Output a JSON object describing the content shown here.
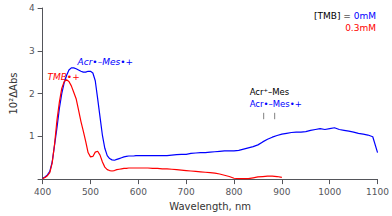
{
  "chart_data": {
    "type": "line",
    "xlabel": "Wavelength, nm",
    "ylabel": "10²ΔAbs",
    "xlim": [
      400,
      1100
    ],
    "ylim": [
      0,
      4
    ],
    "xticks": [
      400,
      500,
      600,
      700,
      800,
      900,
      1000,
      1100
    ],
    "yticks": [
      {
        "value": 0,
        "label": null
      },
      1,
      2,
      3,
      4
    ],
    "grid": false,
    "series": [
      {
        "color": "#0000ff",
        "x": [
          400,
          405,
          410,
          415,
          420,
          425,
          430,
          435,
          440,
          445,
          450,
          455,
          460,
          465,
          470,
          475,
          480,
          485,
          490,
          495,
          500,
          505,
          510,
          515,
          520,
          525,
          530,
          535,
          540,
          545,
          550,
          555,
          560,
          565,
          570,
          575,
          580,
          585,
          590,
          595,
          600,
          610,
          620,
          630,
          640,
          650,
          660,
          670,
          680,
          690,
          700,
          710,
          720,
          730,
          740,
          750,
          760,
          770,
          780,
          790,
          800,
          810,
          820,
          830,
          840,
          850,
          860,
          870,
          880,
          890,
          900,
          910,
          920,
          930,
          940,
          950,
          960,
          970,
          980,
          990,
          1000,
          1010,
          1020,
          1030,
          1040,
          1050,
          1060,
          1070,
          1080,
          1090,
          1100
        ],
        "values": [
          0.02,
          0.05,
          0.1,
          0.18,
          0.4,
          0.8,
          1.2,
          1.65,
          2.0,
          2.25,
          2.42,
          2.55,
          2.6,
          2.6,
          2.58,
          2.55,
          2.52,
          2.5,
          2.5,
          2.52,
          2.52,
          2.48,
          2.3,
          1.88,
          1.45,
          1.02,
          0.72,
          0.55,
          0.48,
          0.45,
          0.44,
          0.46,
          0.48,
          0.5,
          0.52,
          0.53,
          0.54,
          0.54,
          0.54,
          0.55,
          0.55,
          0.55,
          0.55,
          0.55,
          0.55,
          0.55,
          0.55,
          0.56,
          0.57,
          0.58,
          0.58,
          0.6,
          0.61,
          0.62,
          0.62,
          0.63,
          0.64,
          0.65,
          0.66,
          0.66,
          0.66,
          0.67,
          0.7,
          0.73,
          0.76,
          0.8,
          0.87,
          0.93,
          0.98,
          1.02,
          1.05,
          1.07,
          1.09,
          1.1,
          1.1,
          1.11,
          1.14,
          1.16,
          1.18,
          1.16,
          1.18,
          1.2,
          1.16,
          1.14,
          1.12,
          1.1,
          1.07,
          1.05,
          1.03,
          0.99,
          0.62
        ]
      },
      {
        "color": "#ff0000",
        "x": [
          400,
          405,
          410,
          415,
          420,
          425,
          430,
          435,
          440,
          445,
          450,
          455,
          460,
          465,
          470,
          475,
          480,
          485,
          490,
          495,
          500,
          505,
          510,
          515,
          520,
          525,
          530,
          535,
          540,
          545,
          550,
          555,
          560,
          565,
          570,
          575,
          580,
          585,
          590,
          595,
          600,
          610,
          620,
          630,
          640,
          650,
          660,
          670,
          680,
          690,
          700,
          710,
          720,
          730,
          740,
          750,
          760,
          770,
          780,
          790,
          800,
          810,
          820,
          830,
          840,
          850,
          860,
          870,
          880,
          890,
          900
        ],
        "values": [
          0.01,
          0.04,
          0.08,
          0.15,
          0.38,
          0.82,
          1.38,
          1.8,
          2.12,
          2.28,
          2.32,
          2.28,
          2.18,
          2.03,
          1.88,
          1.62,
          1.35,
          1.12,
          0.88,
          0.62,
          0.52,
          0.53,
          0.63,
          0.65,
          0.56,
          0.4,
          0.28,
          0.22,
          0.2,
          0.19,
          0.2,
          0.22,
          0.23,
          0.24,
          0.25,
          0.25,
          0.26,
          0.26,
          0.26,
          0.26,
          0.26,
          0.26,
          0.26,
          0.25,
          0.25,
          0.24,
          0.24,
          0.23,
          0.22,
          0.21,
          0.2,
          0.19,
          0.18,
          0.17,
          0.16,
          0.15,
          0.14,
          0.12,
          0.09,
          0.06,
          0.02,
          0.01,
          0.01,
          0.01,
          0.03,
          0.05,
          0.06,
          0.07,
          0.07,
          0.06,
          0.04
        ]
      }
    ],
    "legend_text": [
      [
        {
          "text": "[TMB] = ",
          "color": "#000000"
        },
        {
          "text": "0mM",
          "color": "#0000ff"
        }
      ],
      [
        {
          "text": "0.3mM",
          "color": "#ff0000"
        }
      ]
    ],
    "annotations": [
      {
        "text": "TMB•+",
        "color": "#ff0000",
        "x": 410,
        "y": 2.28
      },
      {
        "text": "Acr•–Mes•+",
        "color": "#0000ff",
        "x": 473,
        "y": 2.63
      }
    ],
    "tick_marks": {
      "x": [
        862,
        885
      ],
      "y": [
        1.4,
        1.55
      ],
      "labels": [
        {
          "text": "Acr⁺–Mes",
          "color": "#000000"
        },
        {
          "text": "Acr•–Mes•+",
          "color": "#0000ff"
        }
      ]
    }
  }
}
